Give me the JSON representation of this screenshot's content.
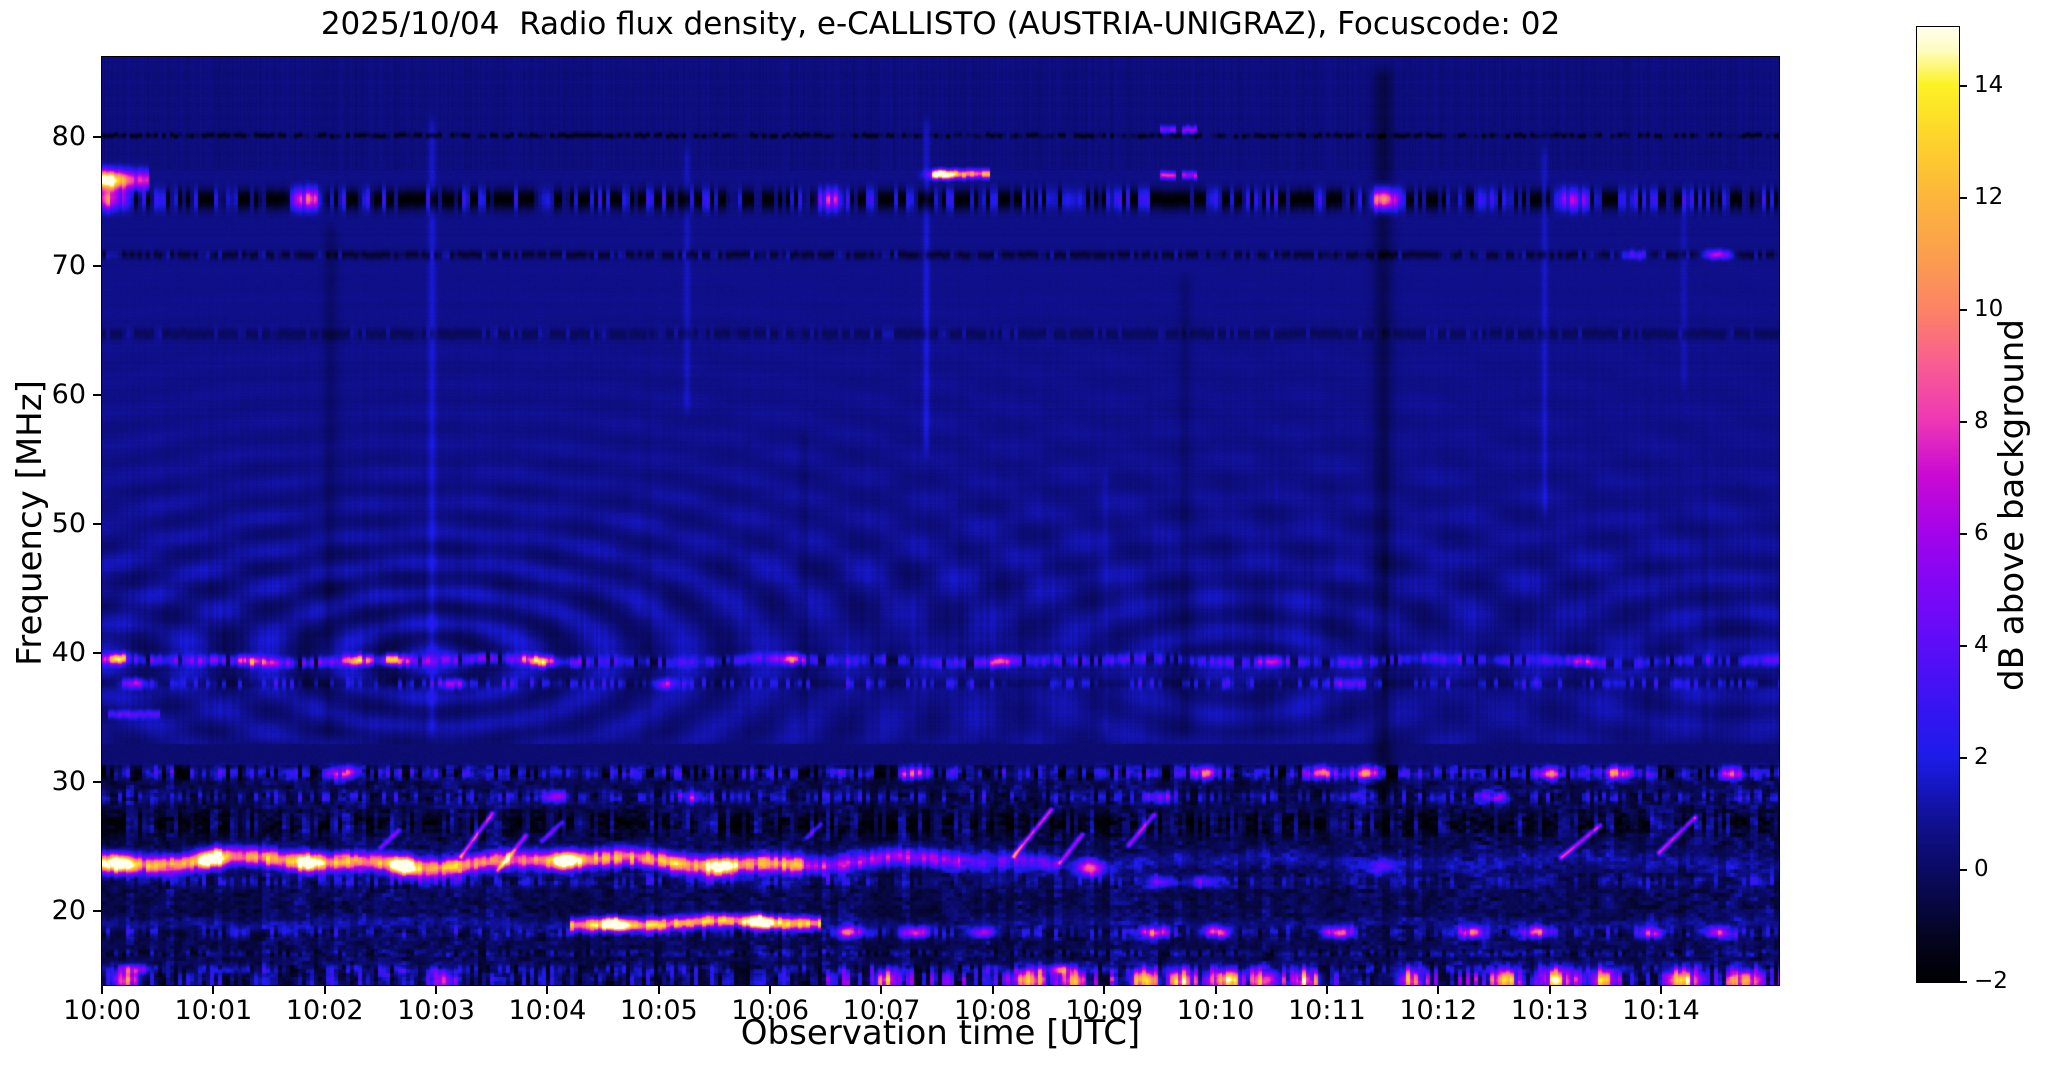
{
  "figure": {
    "title": "2025/10/04  Radio flux density, e-CALLISTO (AUSTRIA-UNIGRAZ), Focuscode: 02",
    "xlabel": "Observation time [UTC]",
    "ylabel": "Frequency [MHz]",
    "colorbar_label": "dB above background",
    "background": "#ffffff",
    "text_color": "#000000"
  },
  "chart_data": {
    "type": "heatmap",
    "subtype": "radio-spectrogram",
    "title": "2025/10/04  Radio flux density, e-CALLISTO (AUSTRIA-UNIGRAZ), Focuscode: 02",
    "date": "2025/10/04",
    "instrument": "e-CALLISTO",
    "station": "AUSTRIA-UNIGRAZ",
    "focuscode": "02",
    "x_axis": {
      "label": "Observation time [UTC]",
      "start": "10:00",
      "end": "10:15",
      "duration_min": 15.06,
      "tick_labels": [
        "10:00",
        "10:01",
        "10:02",
        "10:03",
        "10:04",
        "10:05",
        "10:06",
        "10:07",
        "10:08",
        "10:09",
        "10:10",
        "10:11",
        "10:12",
        "10:13",
        "10:14"
      ]
    },
    "y_axis": {
      "label": "Frequency [MHz]",
      "min": 14.3,
      "max": 86.2,
      "ticks": [
        80,
        70,
        60,
        50,
        40,
        30,
        20
      ]
    },
    "colorbar": {
      "label": "dB above background",
      "min": -2,
      "max": 15.05,
      "ticks": [
        14,
        12,
        10,
        8,
        6,
        4,
        2,
        0,
        -2
      ],
      "tick_labels": [
        "14",
        "12",
        "10",
        "8",
        "6",
        "4",
        "2",
        "0",
        "−2"
      ],
      "colormap": "gnuplot2-like",
      "stops": [
        [
          0.0,
          "#000003"
        ],
        [
          0.045,
          "#04041f"
        ],
        [
          0.09,
          "#08084a"
        ],
        [
          0.125,
          "#0b0b6a"
        ],
        [
          0.165,
          "#10108f"
        ],
        [
          0.21,
          "#1717c8"
        ],
        [
          0.235,
          "#1c1ce8"
        ],
        [
          0.28,
          "#3315f2"
        ],
        [
          0.35,
          "#5b0df8"
        ],
        [
          0.42,
          "#8306f6"
        ],
        [
          0.47,
          "#a303ea"
        ],
        [
          0.53,
          "#ca09d4"
        ],
        [
          0.59,
          "#ef39b4"
        ],
        [
          0.65,
          "#f95f90"
        ],
        [
          0.7,
          "#fc8168"
        ],
        [
          0.76,
          "#fb9e4e"
        ],
        [
          0.82,
          "#fcb53c"
        ],
        [
          0.88,
          "#fdd22c"
        ],
        [
          0.94,
          "#fdf225"
        ],
        [
          0.975,
          "#fefcc0"
        ],
        [
          1.0,
          "#ffffee"
        ]
      ]
    },
    "background_level_db": 0.74,
    "features": {
      "emission_bands": [
        {
          "name": "80.1 MHz dotted interference line",
          "f": 80.15,
          "hw": 0.2,
          "style": "speckle",
          "dark": -2.0,
          "density": 0.5,
          "smin": 0.6,
          "smax": 2.0,
          "segments": [
            [
              0,
              15.1,
              1
            ]
          ],
          "hotspots": []
        },
        {
          "name": "75 MHz broadcast band",
          "f": 75.2,
          "hw": 0.8,
          "style": "speckle",
          "dark": -2.6,
          "density": 0.52,
          "smin": 1.6,
          "smax": 5.2,
          "segments": [
            [
              0,
              15.1,
              1
            ]
          ],
          "hotspots": [
            [
              0.08,
              9
            ],
            [
              1.85,
              8.5
            ],
            [
              6.55,
              7
            ],
            [
              11.5,
              10
            ],
            [
              13.2,
              6
            ]
          ]
        },
        {
          "name": "76.7 MHz blob at start",
          "f": 76.7,
          "hw": 0.75,
          "style": "solid",
          "segments": [
            [
              0,
              0.42,
              6.5
            ]
          ],
          "hotspots": [
            [
              0.06,
              10.5
            ]
          ]
        },
        {
          "name": "77 MHz bright segment",
          "f": 77.15,
          "hw": 0.33,
          "style": "solid",
          "segments": [
            [
              7.45,
              7.97,
              9.5
            ]
          ],
          "hotspots": [
            [
              7.55,
              10.5
            ]
          ]
        },
        {
          "name": "80.5 MHz double dash",
          "f": 80.6,
          "hw": 0.28,
          "style": "solid",
          "segments": [
            [
              9.5,
              9.64,
              4.5
            ],
            [
              9.69,
              9.83,
              4.5
            ]
          ],
          "hotspots": []
        },
        {
          "name": "77 MHz double dash",
          "f": 77.05,
          "hw": 0.28,
          "style": "solid",
          "segments": [
            [
              9.5,
              9.64,
              6.5
            ],
            [
              9.69,
              9.83,
              6.0
            ]
          ],
          "hotspots": []
        },
        {
          "name": "71 MHz interference line",
          "f": 70.9,
          "hw": 0.33,
          "style": "speckle",
          "dark": -1.5,
          "density": 0.42,
          "smin": 0.5,
          "smax": 2.2,
          "segments": [
            [
              0,
              15.1,
              1
            ]
          ],
          "hotspots": [
            [
              13.75,
              4
            ],
            [
              14.5,
              8
            ]
          ]
        },
        {
          "name": "64.8 MHz faint row",
          "f": 64.8,
          "hw": 0.45,
          "style": "speckle",
          "dark": -0.9,
          "density": 0.3,
          "smin": 0.3,
          "smax": 1.4,
          "segments": [
            [
              0,
              15.1,
              1
            ]
          ],
          "hotspots": []
        },
        {
          "name": "39.4 MHz interference band",
          "f": 39.45,
          "hw": 0.4,
          "wavy": 0.12,
          "style": "speckle",
          "dark": -1.1,
          "density": 0.82,
          "smin": 2.4,
          "smax": 6.5,
          "segments": [
            [
              0,
              4.3,
              1
            ],
            [
              4.3,
              15.1,
              0.7
            ]
          ],
          "hotspots": [
            [
              0.12,
              10
            ],
            [
              1.35,
              8.5
            ],
            [
              2.3,
              9
            ],
            [
              2.6,
              9
            ],
            [
              3.9,
              11.5
            ],
            [
              6.2,
              8
            ],
            [
              8.05,
              7.5
            ],
            [
              10.5,
              6
            ],
            [
              13.3,
              6
            ]
          ]
        },
        {
          "name": "37.7 MHz speckle row",
          "f": 37.7,
          "hw": 0.38,
          "style": "speckle",
          "dark": -0.7,
          "density": 0.42,
          "smin": 0.9,
          "smax": 3.2,
          "segments": [
            [
              0,
              15.1,
              1
            ]
          ],
          "hotspots": [
            [
              0.3,
              5
            ],
            [
              3.15,
              6
            ],
            [
              5.05,
              4.5
            ],
            [
              11.2,
              4
            ]
          ]
        },
        {
          "name": "35.3 MHz dash at start",
          "f": 35.3,
          "hw": 0.3,
          "style": "solid",
          "segments": [
            [
              0.05,
              0.52,
              3.2
            ]
          ],
          "hotspots": []
        },
        {
          "name": "30.7 MHz band",
          "f": 30.75,
          "hw": 0.5,
          "style": "speckle",
          "dark": -1.4,
          "density": 0.72,
          "smin": 1.8,
          "smax": 5.2,
          "segments": [
            [
              0,
              15.1,
              1
            ]
          ],
          "hotspots": [
            [
              2.15,
              7
            ],
            [
              7.3,
              7.5
            ],
            [
              9.9,
              8
            ],
            [
              10.95,
              9.5
            ],
            [
              11.35,
              8.5
            ],
            [
              13.0,
              7
            ],
            [
              13.6,
              9
            ],
            [
              14.65,
              7
            ]
          ]
        },
        {
          "name": "28.9 MHz speckle band",
          "f": 28.9,
          "hw": 0.5,
          "style": "speckle",
          "dark": -0.4,
          "density": 0.5,
          "smin": 1.1,
          "smax": 3.6,
          "segments": [
            [
              0,
              15.1,
              1
            ]
          ],
          "hotspots": [
            [
              4.05,
              6
            ],
            [
              5.3,
              5
            ],
            [
              9.5,
              5
            ],
            [
              12.5,
              4
            ]
          ]
        },
        {
          "name": "26-28 MHz blob zone",
          "f": 26.8,
          "hw": 1.0,
          "style": "speckle",
          "dark": -1.3,
          "density": 0.38,
          "smin": 0.9,
          "smax": 3.0,
          "segments": [
            [
              0,
              15.1,
              1
            ]
          ],
          "hotspots": []
        },
        {
          "name": "23.8 MHz main bright band",
          "f": 23.85,
          "hw": 0.72,
          "wavy": 0.3,
          "style": "solid",
          "segments": [
            [
              0,
              6.3,
              10.6
            ],
            [
              6.3,
              7.7,
              6.5
            ],
            [
              7.7,
              8.6,
              4.2
            ],
            [
              8.6,
              15.1,
              1.3
            ]
          ],
          "hotspots": [
            [
              0.15,
              12
            ],
            [
              1.0,
              11.5
            ],
            [
              1.85,
              11.3
            ],
            [
              2.7,
              11.5
            ],
            [
              4.15,
              11
            ],
            [
              5.55,
              11
            ],
            [
              8.87,
              8
            ],
            [
              11.5,
              3.5
            ]
          ]
        },
        {
          "name": "22.3 MHz under-band",
          "f": 22.35,
          "hw": 0.5,
          "style": "speckle",
          "dark": 0,
          "density": 0.55,
          "smin": 0.8,
          "smax": 2.8,
          "segments": [
            [
              0,
              7,
              1
            ],
            [
              7,
              15.1,
              0.7
            ]
          ],
          "hotspots": [
            [
              9.5,
              4
            ],
            [
              9.9,
              4.5
            ]
          ]
        },
        {
          "name": "19 MHz band with bright segment",
          "f": 19.1,
          "hw": 0.5,
          "wavy": 0.15,
          "style": "solid",
          "segments": [
            [
              0,
              4.2,
              1.1
            ],
            [
              4.2,
              6.45,
              11.6
            ],
            [
              6.45,
              15.1,
              0.8
            ]
          ],
          "hotspots": [
            [
              4.6,
              12.5
            ],
            [
              5.9,
              12.5
            ]
          ]
        },
        {
          "name": "18.4 MHz drifting tail and spots",
          "f": 18.4,
          "hw": 0.45,
          "style": "speckle",
          "dark": -0.3,
          "density": 0.5,
          "smin": 0.8,
          "smax": 3.0,
          "segments": [
            [
              0,
              15.1,
              1
            ]
          ],
          "hotspots": [
            [
              6.7,
              9
            ],
            [
              7.3,
              8.5
            ],
            [
              7.9,
              7
            ],
            [
              9.45,
              9
            ],
            [
              10.0,
              8
            ],
            [
              11.1,
              8.5
            ],
            [
              12.3,
              8
            ],
            [
              12.88,
              8
            ],
            [
              13.9,
              6
            ],
            [
              14.5,
              7
            ]
          ]
        },
        {
          "name": "16.8 MHz dotted line",
          "f": 16.8,
          "hw": 0.28,
          "style": "speckle",
          "dark": -0.6,
          "density": 0.65,
          "smin": 0.7,
          "smax": 2.4,
          "segments": [
            [
              0,
              15.1,
              1
            ]
          ],
          "hotspots": []
        },
        {
          "name": "15.5 MHz streak row",
          "f": 15.55,
          "hw": 0.4,
          "style": "speckle",
          "dark": -0.3,
          "density": 0.45,
          "smin": 0.8,
          "smax": 3.0,
          "segments": [
            [
              0,
              15.1,
              1
            ]
          ],
          "hotspots": [
            [
              0.3,
              5
            ],
            [
              8.6,
              7
            ]
          ]
        },
        {
          "name": "bottom 14.5-15 MHz activity",
          "f": 14.7,
          "hw": 0.85,
          "style": "speckle",
          "dark": -0.6,
          "density": 0.6,
          "smin": 1.2,
          "smax": 4.5,
          "segments": [
            [
              0,
              3.0,
              0.9
            ],
            [
              3.0,
              6.5,
              0.7
            ],
            [
              6.5,
              11.1,
              1.7
            ],
            [
              11.1,
              11.6,
              0.5
            ],
            [
              11.6,
              15.1,
              1.6
            ]
          ],
          "hotspots": [
            [
              0.2,
              9
            ],
            [
              3.05,
              7
            ],
            [
              7.05,
              9
            ],
            [
              8.35,
              10
            ],
            [
              8.7,
              9
            ],
            [
              9.35,
              10
            ],
            [
              9.7,
              9
            ],
            [
              10.1,
              12
            ],
            [
              10.45,
              9
            ],
            [
              10.8,
              9
            ],
            [
              11.75,
              9
            ],
            [
              12.6,
              9
            ],
            [
              13.05,
              10
            ],
            [
              13.45,
              9
            ],
            [
              14.2,
              10
            ],
            [
              14.75,
              10
            ]
          ]
        }
      ],
      "burst_streaks": [
        [
          2.5,
          25.0,
          2.66,
          26.3,
          5
        ],
        [
          3.22,
          24.3,
          3.5,
          27.6,
          8
        ],
        [
          3.55,
          23.2,
          3.8,
          25.9,
          7
        ],
        [
          3.95,
          25.5,
          4.12,
          26.9,
          5.5
        ],
        [
          6.33,
          25.8,
          6.45,
          26.8,
          4.5
        ],
        [
          8.18,
          24.3,
          8.52,
          27.9,
          8.5
        ],
        [
          8.6,
          23.8,
          8.8,
          26.0,
          7
        ],
        [
          9.22,
          25.2,
          9.44,
          27.5,
          6.5
        ],
        [
          13.1,
          24.2,
          13.45,
          26.7,
          7.5
        ],
        [
          13.98,
          24.6,
          14.3,
          27.3,
          7.5
        ]
      ],
      "vertical_artifacts": [
        [
          2.96,
          33,
          82,
          1.0,
          0.035
        ],
        [
          5.25,
          58,
          80,
          0.8,
          0.03
        ],
        [
          7.4,
          55,
          82,
          1.1,
          0.03
        ],
        [
          9.0,
          33,
          55,
          0.5,
          0.03
        ],
        [
          12.95,
          50,
          80,
          0.9,
          0.03
        ],
        [
          14.2,
          60,
          76,
          0.6,
          0.03
        ],
        [
          2.05,
          33,
          74,
          -0.6,
          0.07
        ],
        [
          6.3,
          33,
          58,
          -0.35,
          0.05
        ],
        [
          9.72,
          33,
          70,
          -0.5,
          0.06
        ],
        [
          11.5,
          28,
          86,
          -1.0,
          0.09
        ]
      ],
      "fringe_rings": [
        [
          3.0,
          39.5,
          9,
          0.8,
          0.16
        ],
        [
          10.2,
          38.5,
          8,
          0.55,
          0.2
        ],
        [
          14.7,
          40.0,
          8,
          0.5,
          0.22
        ],
        [
          0.0,
          39.5,
          9,
          0.5,
          0.25
        ]
      ]
    }
  }
}
